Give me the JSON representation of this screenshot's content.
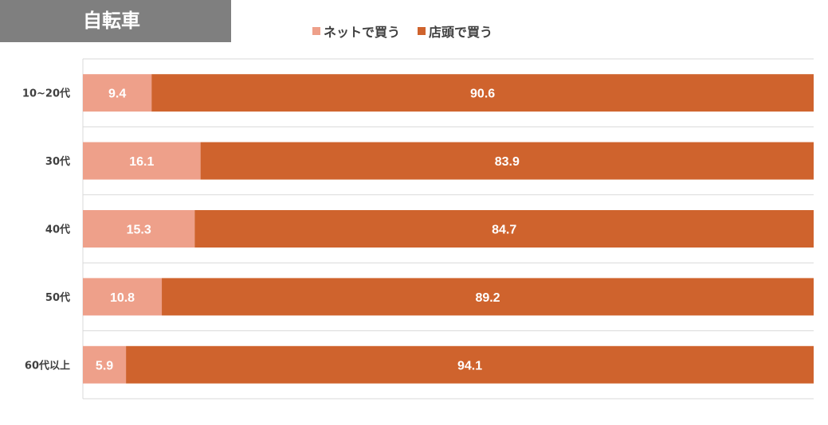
{
  "header": {
    "title": "自転車"
  },
  "legend": {
    "items": [
      {
        "label": "ネットで買う",
        "color": "#eea08a"
      },
      {
        "label": "店頭で買う",
        "color": "#cf632d"
      }
    ]
  },
  "chart_data": {
    "type": "bar",
    "orientation": "horizontal",
    "stacked": true,
    "title": "自転車",
    "categories": [
      "10~20代",
      "30代",
      "40代",
      "50代",
      "60代以上"
    ],
    "series": [
      {
        "name": "ネットで買う",
        "color": "#eea08a",
        "values": [
          9.4,
          16.1,
          15.3,
          10.8,
          5.9
        ]
      },
      {
        "name": "店頭で買う",
        "color": "#cf632d",
        "values": [
          90.6,
          83.9,
          84.7,
          89.2,
          94.1
        ]
      }
    ],
    "xlim": [
      0,
      100
    ],
    "grid": true,
    "legend_position": "top"
  }
}
